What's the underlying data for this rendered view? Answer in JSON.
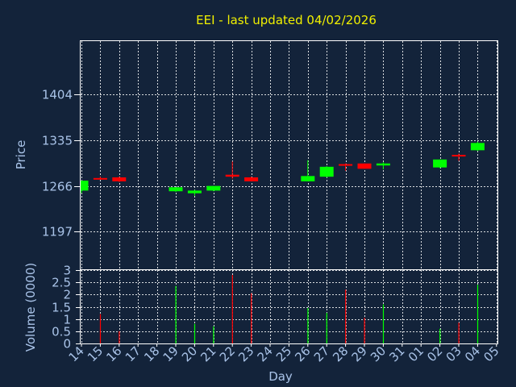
{
  "chart_data": [
    {
      "type": "candlestick",
      "title": "EEI - last updated 04/02/2026",
      "ylabel": "Price",
      "ylim": [
        1140,
        1485
      ],
      "yticks": [
        1197,
        1266,
        1335,
        1404
      ],
      "grid": true,
      "up_color": "#00ff00",
      "down_color": "#ff0000",
      "candles": [
        {
          "day": "14",
          "open": 1259,
          "high": 1274,
          "low": 1255,
          "close": 1274
        },
        {
          "day": "15",
          "open": 1278,
          "high": 1280,
          "low": 1276,
          "close": 1277
        },
        {
          "day": "16",
          "open": 1279,
          "high": 1280,
          "low": 1272,
          "close": 1273
        },
        {
          "day": "19",
          "open": 1258,
          "high": 1264,
          "low": 1257,
          "close": 1264
        },
        {
          "day": "20",
          "open": 1255,
          "high": 1260,
          "low": 1251,
          "close": 1259
        },
        {
          "day": "21",
          "open": 1259,
          "high": 1266,
          "low": 1258,
          "close": 1266
        },
        {
          "day": "22",
          "open": 1283,
          "high": 1303,
          "low": 1277,
          "close": 1280
        },
        {
          "day": "23",
          "open": 1279,
          "high": 1280,
          "low": 1273,
          "close": 1273
        },
        {
          "day": "26",
          "open": 1273,
          "high": 1305,
          "low": 1273,
          "close": 1281
        },
        {
          "day": "27",
          "open": 1280,
          "high": 1296,
          "low": 1279,
          "close": 1295
        },
        {
          "day": "28",
          "open": 1299,
          "high": 1300,
          "low": 1289,
          "close": 1297
        },
        {
          "day": "29",
          "open": 1300,
          "high": 1300,
          "low": 1292,
          "close": 1292
        },
        {
          "day": "30",
          "open": 1297,
          "high": 1302,
          "low": 1291,
          "close": 1300
        },
        {
          "day": "02",
          "open": 1294,
          "high": 1306,
          "low": 1293,
          "close": 1306
        },
        {
          "day": "03",
          "open": 1313,
          "high": 1315,
          "low": 1304,
          "close": 1311
        },
        {
          "day": "04",
          "open": 1320,
          "high": 1333,
          "low": 1319,
          "close": 1331
        }
      ]
    },
    {
      "type": "bar",
      "ylabel": "Volume (0000)",
      "xlabel": "Day",
      "ylim": [
        0,
        3
      ],
      "yticks": [
        "0",
        "0.5",
        "1",
        "1.5",
        "2",
        "2.5",
        "3"
      ],
      "x_tick_labels": [
        "14",
        "15",
        "16",
        "17",
        "18",
        "19",
        "20",
        "21",
        "22",
        "23",
        "24",
        "25",
        "26",
        "27",
        "28",
        "29",
        "30",
        "31",
        "01",
        "02",
        "03",
        "04",
        "05"
      ],
      "bars": [
        {
          "day": "15",
          "value": 1.2,
          "color": "#ff0000"
        },
        {
          "day": "16",
          "value": 0.5,
          "color": "#ff0000"
        },
        {
          "day": "19",
          "value": 2.35,
          "color": "#00ff00"
        },
        {
          "day": "20",
          "value": 0.8,
          "color": "#00ff00"
        },
        {
          "day": "21",
          "value": 0.7,
          "color": "#00ff00"
        },
        {
          "day": "22",
          "value": 2.8,
          "color": "#ff0000"
        },
        {
          "day": "23",
          "value": 2.05,
          "color": "#ff0000"
        },
        {
          "day": "26",
          "value": 1.45,
          "color": "#00ff00"
        },
        {
          "day": "27",
          "value": 1.25,
          "color": "#00ff00"
        },
        {
          "day": "28",
          "value": 2.2,
          "color": "#ff0000"
        },
        {
          "day": "29",
          "value": 1.05,
          "color": "#ff0000"
        },
        {
          "day": "30",
          "value": 1.6,
          "color": "#00ff00"
        },
        {
          "day": "02",
          "value": 0.6,
          "color": "#00ff00"
        },
        {
          "day": "03",
          "value": 0.85,
          "color": "#ff0000"
        },
        {
          "day": "04",
          "value": 2.4,
          "color": "#00ff00"
        }
      ]
    }
  ]
}
